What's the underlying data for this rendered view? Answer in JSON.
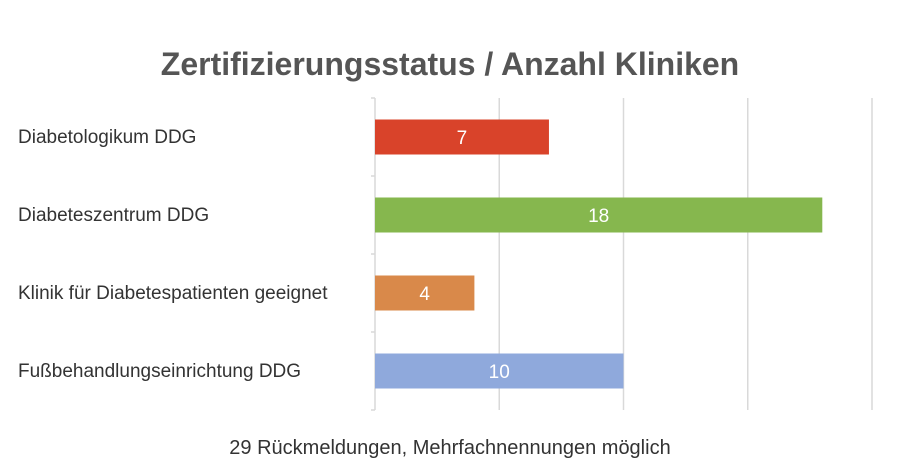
{
  "chart_data": {
    "type": "bar",
    "orientation": "horizontal",
    "title": "Zertifizierungsstatus / Anzahl Kliniken",
    "categories": [
      "Diabetologikum DDG",
      "Diabeteszentrum DDG",
      "Klinik für Diabetespatienten geeignet",
      "Fußbehandlungseinrichtung DDG"
    ],
    "values": [
      7,
      18,
      4,
      10
    ],
    "colors": [
      "#d9432a",
      "#86b74e",
      "#d9894a",
      "#8fa9dc"
    ],
    "xlim": [
      0,
      20
    ],
    "x_gridline_step": 5,
    "grid": true,
    "data_labels": true,
    "footnote": "29 Rückmeldungen, Mehrfachnennungen möglich"
  }
}
